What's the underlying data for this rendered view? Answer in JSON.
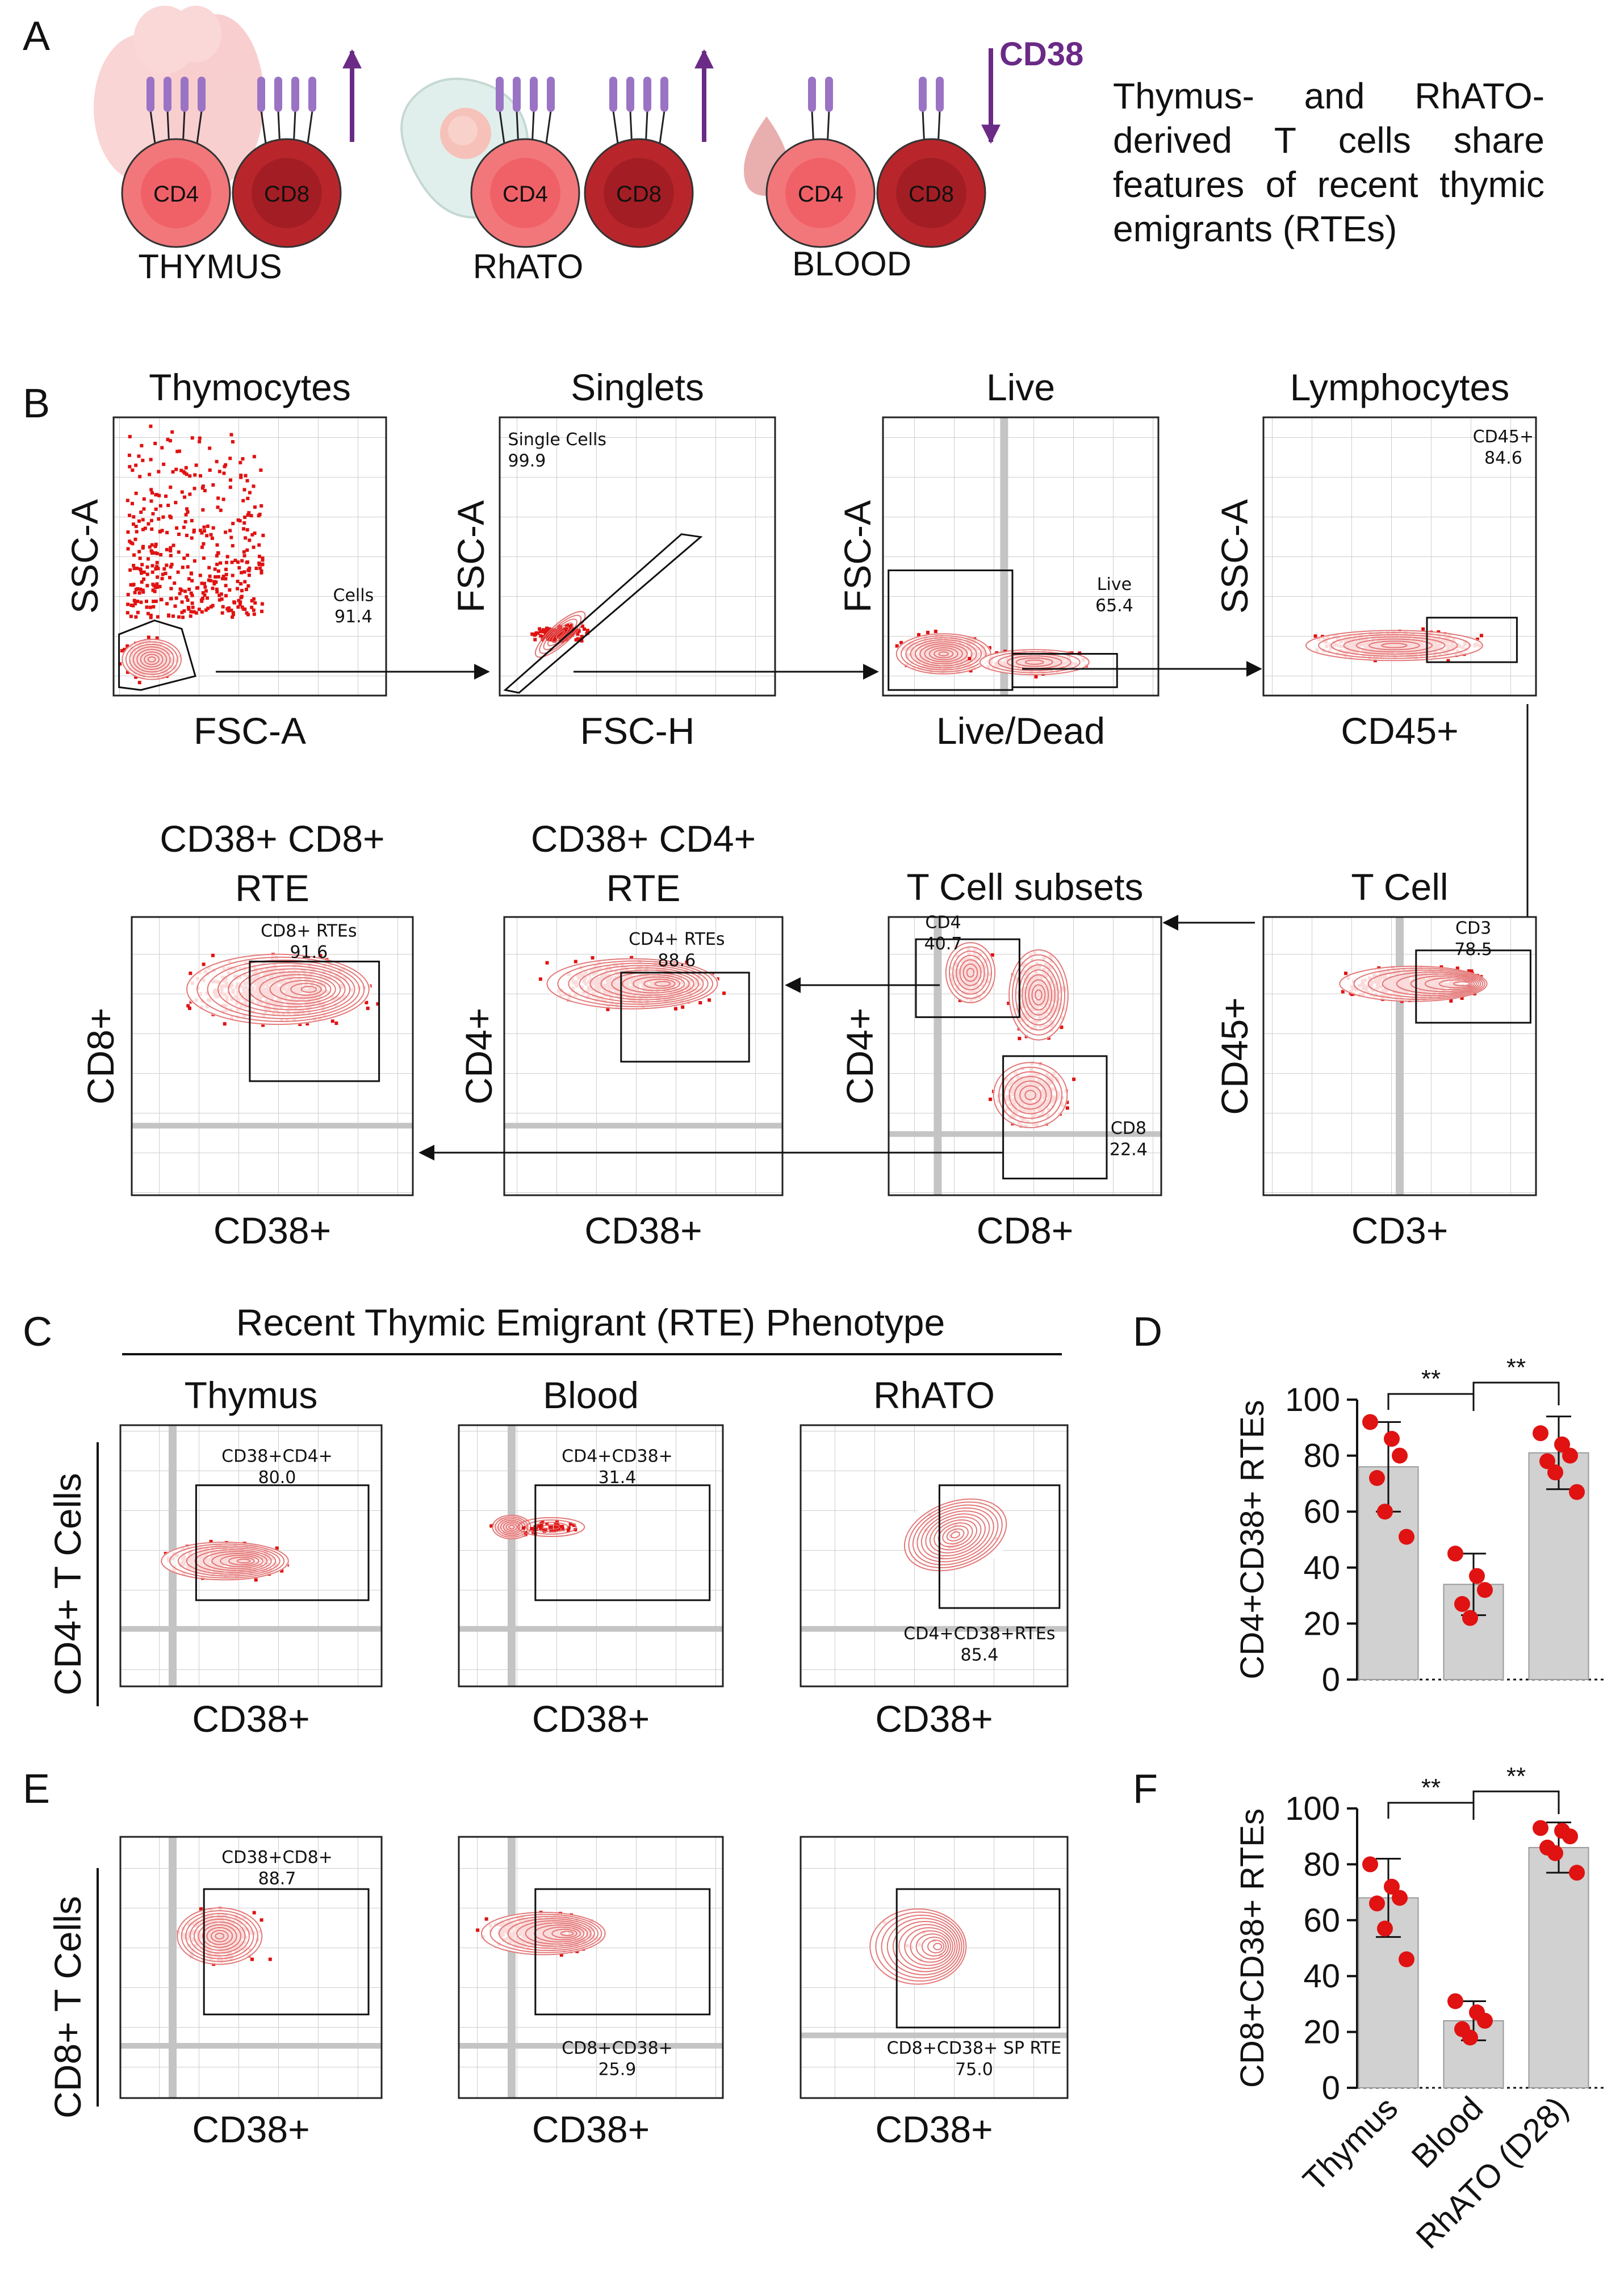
{
  "panel_letters": {
    "A": "A",
    "B": "B",
    "C": "C",
    "D": "D",
    "E": "E",
    "F": "F"
  },
  "panelA": {
    "groups": [
      {
        "name": "THYMUS",
        "cd4": "CD4",
        "cd8": "CD8"
      },
      {
        "name": "RhATO",
        "cd4": "CD4",
        "cd8": "CD8"
      },
      {
        "name": "BLOOD",
        "cd4": "CD4",
        "cd8": "CD8"
      }
    ],
    "cd38_label": "CD38",
    "description": "Thymus- and RhATO-derived T cells share features of recent thymic emigrants (RTEs)",
    "colors": {
      "cd4": "#f2777b",
      "cd8": "#b8262c",
      "cd38_arrow": "#6a2a86",
      "receptor": "#9a73c4"
    }
  },
  "panelB": {
    "plots": [
      {
        "title": "Thymocytes",
        "x": "FSC-A",
        "y": "SSC-A",
        "gate_name": "Cells",
        "gate_value": "91.4"
      },
      {
        "title": "Singlets",
        "x": "FSC-H",
        "y": "FSC-A",
        "gate_name": "Single Cells",
        "gate_value": "99.9"
      },
      {
        "title": "Live",
        "x": "Live/Dead",
        "y": "FSC-A",
        "gate_name": "Live",
        "gate_value": "65.4"
      },
      {
        "title": "Lymphocytes",
        "x": "CD45+",
        "y": "SSC-A",
        "gate_name": "CD45+",
        "gate_value": "84.6"
      },
      {
        "title": "T Cell",
        "x": "CD3+",
        "y": "CD45+",
        "gate_name": "CD3",
        "gate_value": "78.5"
      },
      {
        "title": "T Cell subsets",
        "x": "CD8+",
        "y": "CD4+",
        "gate_name": "CD4",
        "gate_value": "40.7",
        "gate2_name": "CD8",
        "gate2_value": "22.4"
      },
      {
        "title_l1": "CD38+ CD4+",
        "title_l2": "RTE",
        "x": "CD38+",
        "y": "CD4+",
        "gate_name": "CD4+ RTEs",
        "gate_value": "88.6"
      },
      {
        "title_l1": "CD38+ CD8+",
        "title_l2": "RTE",
        "x": "CD38+",
        "y": "CD8+",
        "gate_name": "CD8+ RTEs",
        "gate_value": "91.6"
      }
    ]
  },
  "panelC": {
    "header": "Recent Thymic Emigrant (RTE) Phenotype",
    "row_label": "CD4+ T Cells",
    "plots": [
      {
        "title": "Thymus",
        "x": "CD38+",
        "gate_name": "CD38+CD4+",
        "gate_value": "80.0"
      },
      {
        "title": "Blood",
        "x": "CD38+",
        "gate_name": "CD4+CD38+",
        "gate_value": "31.4"
      },
      {
        "title": "RhATO",
        "x": "CD38+",
        "gate_name": "CD4+CD38+RTEs",
        "gate_value": "85.4"
      }
    ]
  },
  "panelE": {
    "row_label": "CD8+ T Cells",
    "plots": [
      {
        "x": "CD38+",
        "gate_name": "CD38+CD8+",
        "gate_value": "88.7"
      },
      {
        "x": "CD38+",
        "gate_name": "CD8+CD38+",
        "gate_value": "25.9"
      },
      {
        "x": "CD38+",
        "gate_name": "CD8+CD38+ SP RTE",
        "gate_value": "75.0"
      }
    ]
  },
  "chart_data": [
    {
      "type": "bar",
      "panel": "D",
      "categories": [
        "Thymus",
        "Blood",
        "RhATO (D28)"
      ],
      "values": [
        76,
        34,
        81
      ],
      "sd": [
        16,
        11,
        13
      ],
      "points": [
        [
          92,
          86,
          80,
          72,
          60,
          51
        ],
        [
          45,
          37,
          32,
          27,
          22
        ],
        [
          88,
          84,
          80,
          78,
          74,
          67
        ]
      ],
      "ylabel": "CD4+CD38+ RTEs",
      "ylim": [
        0,
        100
      ],
      "yticks": [
        "0",
        "20",
        "40",
        "60",
        "80",
        "100"
      ],
      "significance": [
        {
          "from": "Thymus",
          "to": "Blood",
          "label": "**"
        },
        {
          "from": "Blood",
          "to": "RhATO (D28)",
          "label": "**"
        }
      ],
      "bar_color": "#d1d1d1",
      "point_color": "#e01212"
    },
    {
      "type": "bar",
      "panel": "F",
      "categories": [
        "Thymus",
        "Blood",
        "RhATO (D28)"
      ],
      "values": [
        68,
        24,
        86
      ],
      "sd": [
        14,
        7,
        9
      ],
      "points": [
        [
          80,
          72,
          68,
          66,
          57,
          46
        ],
        [
          31,
          27,
          24,
          21,
          18
        ],
        [
          93,
          92,
          90,
          86,
          84,
          77
        ]
      ],
      "ylabel": "CD8+CD38+ RTEs",
      "ylim": [
        0,
        100
      ],
      "yticks": [
        "0",
        "20",
        "40",
        "60",
        "80",
        "100"
      ],
      "significance": [
        {
          "from": "Thymus",
          "to": "Blood",
          "label": "**"
        },
        {
          "from": "Blood",
          "to": "RhATO (D28)",
          "label": "**"
        }
      ],
      "bar_color": "#d1d1d1",
      "point_color": "#e01212"
    }
  ]
}
